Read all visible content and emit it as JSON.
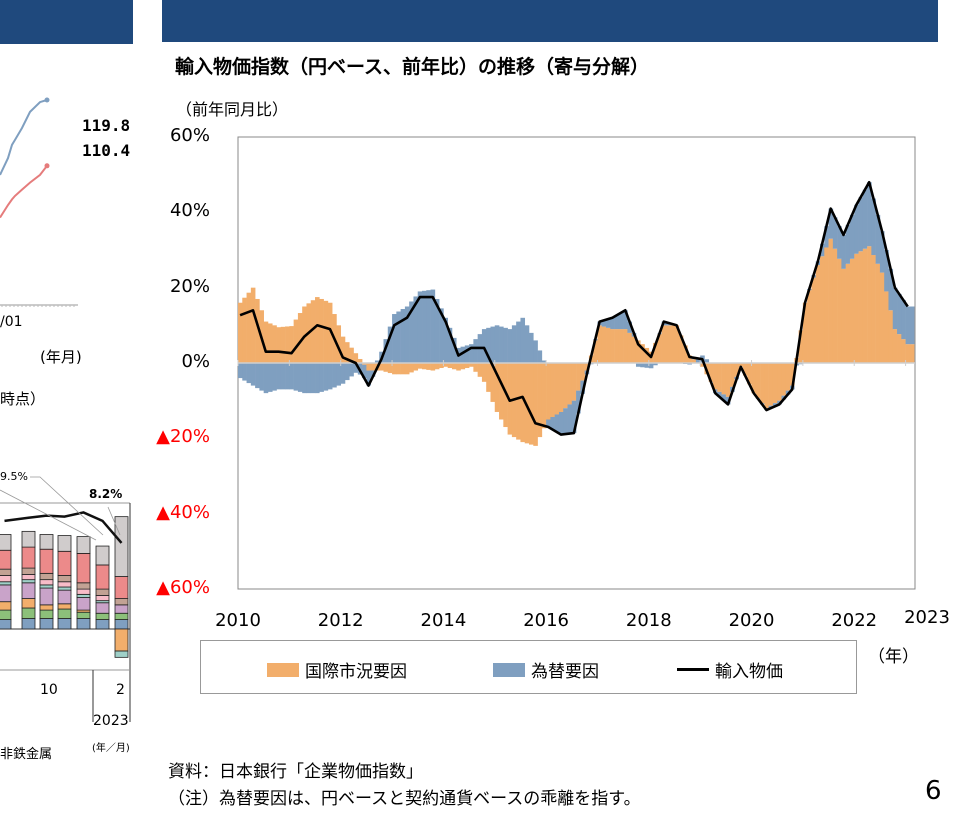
{
  "main": {
    "title": "輸入物価指数（円ベース、前年比）の推移（寄与分解）",
    "unit_label": "（前年同月比）",
    "x_unit_label": "（年）",
    "source": "資料：日本銀行「企業物価指数」",
    "note": "（注）為替要因は、円ベースと契約通貨ベースの乖離を指す。",
    "page_number": "6"
  },
  "left_fragment": {
    "top_labels": {
      "blue_end": "119.8",
      "red_end": "110.4",
      "axis_tick": "/01",
      "axis_unit": "(年月)",
      "caption_tail": "時点）"
    },
    "bottom_labels": {
      "callout_a": "9.5%",
      "callout_b": "8.2%",
      "tick_10": "10",
      "tick_2": "2",
      "year": "2023",
      "unit": "(年／月)",
      "legend_tail": "非鉄金属"
    }
  },
  "chart_data": [
    {
      "type": "bar+line",
      "title": "輸入物価指数（円ベース、前年比）の推移（寄与分解）",
      "ylabel": "（前年同月比）",
      "xlabel": "（年）",
      "ylim": [
        -60,
        60
      ],
      "y_ticks": [
        {
          "value": 60,
          "label": "60%",
          "color": "#000000"
        },
        {
          "value": 40,
          "label": "40%",
          "color": "#000000"
        },
        {
          "value": 20,
          "label": "20%",
          "color": "#000000"
        },
        {
          "value": 0,
          "label": "0%",
          "color": "#000000"
        },
        {
          "value": -20,
          "label": "▲20%",
          "color": "#ff0000"
        },
        {
          "value": -40,
          "label": "▲40%",
          "color": "#ff0000"
        },
        {
          "value": -60,
          "label": "▲60%",
          "color": "#ff0000"
        }
      ],
      "x_ticks": [
        "2010",
        "2012",
        "2014",
        "2016",
        "2018",
        "2020",
        "2022",
        "2023"
      ],
      "grid": false,
      "legend_position": "bottom",
      "x": [
        "2010-01",
        "2010-04",
        "2010-07",
        "2010-10",
        "2011-01",
        "2011-04",
        "2011-07",
        "2011-10",
        "2012-01",
        "2012-04",
        "2012-07",
        "2012-10",
        "2013-01",
        "2013-04",
        "2013-07",
        "2013-10",
        "2014-01",
        "2014-04",
        "2014-07",
        "2014-10",
        "2015-01",
        "2015-04",
        "2015-07",
        "2015-10",
        "2016-01",
        "2016-04",
        "2016-07",
        "2016-10",
        "2017-01",
        "2017-04",
        "2017-07",
        "2017-10",
        "2018-01",
        "2018-04",
        "2018-07",
        "2018-10",
        "2019-01",
        "2019-04",
        "2019-07",
        "2019-10",
        "2020-01",
        "2020-04",
        "2020-07",
        "2020-10",
        "2021-01",
        "2021-04",
        "2021-07",
        "2021-10",
        "2022-01",
        "2022-04",
        "2022-07",
        "2022-10",
        "2023-01"
      ],
      "series": [
        {
          "name": "国際市況要因",
          "type": "bar",
          "color": "#f2ae6b",
          "values": [
            16,
            20,
            11,
            9.5,
            9.8,
            15,
            17.5,
            16,
            7,
            2.6,
            -2,
            -2,
            -3,
            -3,
            -1.5,
            -2,
            -1,
            -2,
            -1,
            -5,
            -13,
            -19,
            -21,
            -22,
            -15,
            -13,
            -10,
            -2,
            10,
            9,
            9,
            6,
            3,
            10,
            10,
            2,
            -1,
            -7,
            -9,
            -1,
            -8,
            -12,
            -10,
            -6,
            16,
            26,
            33,
            25,
            29,
            31,
            24,
            9,
            5
          ]
        },
        {
          "name": "為替要因",
          "type": "bar",
          "color": "#7f9fc0",
          "values": [
            -4,
            -6,
            -8,
            -7,
            -7,
            -8,
            -8,
            -7,
            -5.5,
            -2.6,
            -4,
            3,
            13,
            15,
            19,
            19.5,
            12,
            4,
            5,
            9,
            10,
            9,
            12,
            6,
            -2,
            -6,
            -8.6,
            -1,
            1,
            3,
            5,
            -1,
            -1.4,
            1,
            0,
            -0.4,
            2,
            -1,
            -2,
            0,
            0,
            -0.5,
            -1,
            -1,
            0,
            1,
            8,
            9,
            13,
            17,
            11,
            11,
            10
          ]
        },
        {
          "name": "輸入物価",
          "type": "line",
          "color": "#000000",
          "values": [
            12.7,
            14,
            3,
            3,
            2.6,
            7,
            10,
            9,
            1.5,
            0,
            -6,
            1,
            10,
            12,
            17.5,
            17.5,
            11,
            2,
            4,
            4,
            -3,
            -10,
            -9,
            -16,
            -17,
            -19,
            -18.6,
            -3,
            11,
            12,
            14,
            5,
            1.6,
            11,
            10,
            1.6,
            1,
            -8,
            -11,
            -1,
            -8,
            -12.5,
            -11,
            -7,
            16,
            27,
            41,
            34,
            42,
            48,
            35,
            20,
            15
          ]
        }
      ]
    },
    {
      "type": "line",
      "note": "partially visible fragment",
      "series": [
        {
          "color": "#7f9fc0",
          "values": [
            109.1,
            111.5,
            113.4,
            114.1,
            115.8,
            118.1,
            119.5,
            119.8
          ]
        },
        {
          "color": "#e57c7c",
          "values": [
            103.0,
            104.8,
            105.6,
            106.1,
            107.0,
            108.0,
            109.1,
            110.4
          ]
        }
      ]
    },
    {
      "type": "stacked-bar",
      "note": "partially visible fragment",
      "segment_colors": [
        "#7f9fc0",
        "#8cc07a",
        "#f2ae6b",
        "#c9a3c9",
        "#9fd0c8",
        "#f7bcc8",
        "#c2a294",
        "#ec8a8a",
        "#d0cccc"
      ],
      "bars": [
        [
          0.9,
          0.9,
          0.9,
          1.6,
          0.3,
          0.6,
          0.6,
          1.9,
          1.6
        ],
        [
          0.9,
          0.9,
          0.8,
          1.6,
          0.3,
          0.6,
          0.6,
          1.8,
          1.5
        ],
        [
          1.0,
          1.0,
          0.9,
          1.5,
          0.3,
          0.5,
          0.6,
          2.0,
          1.5
        ],
        [
          1.0,
          0.8,
          0.5,
          1.6,
          0.3,
          0.5,
          0.6,
          2.3,
          1.4
        ],
        [
          1.0,
          0.9,
          0.5,
          1.3,
          0.3,
          0.5,
          0.6,
          2.3,
          1.5
        ],
        [
          1.0,
          0.6,
          0.2,
          1.2,
          0.3,
          0.5,
          0.6,
          2.8,
          1.6
        ],
        [
          0.9,
          0.6,
          0.0,
          1.0,
          0.2,
          0.5,
          0.6,
          2.3,
          1.8
        ],
        [
          0.9,
          0.6,
          -2.1,
          0.8,
          -0.6,
          0.0,
          0.6,
          2.1,
          5.7
        ]
      ],
      "line": [
        9.9,
        10.3,
        10.6,
        10.8,
        10.7,
        11.1,
        10.3,
        8.2
      ]
    }
  ]
}
